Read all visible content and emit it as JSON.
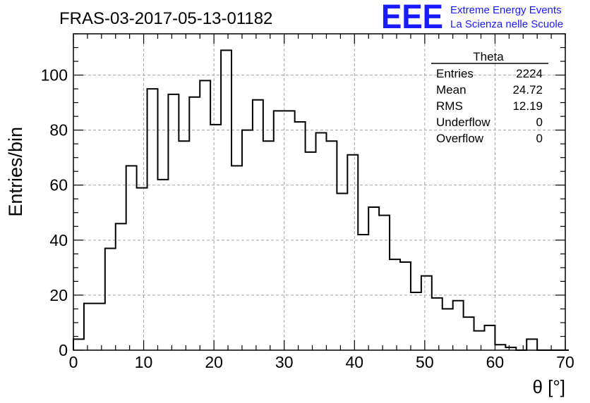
{
  "header": {
    "run_title": "FRAS-03-2017-05-13-01182",
    "logo_letters": "EEE",
    "logo_line1": "Extreme Energy Events",
    "logo_line2": "La Scienza nelle Scuole",
    "logo_color": "#1a1aff"
  },
  "stats_box": {
    "title": "Theta",
    "rows": [
      {
        "label": "Entries",
        "value": "2224"
      },
      {
        "label": "Mean",
        "value": "24.72"
      },
      {
        "label": "RMS",
        "value": "12.19"
      },
      {
        "label": "Underflow",
        "value": "0"
      },
      {
        "label": "Overflow",
        "value": "0"
      }
    ]
  },
  "chart_data": {
    "type": "histogram",
    "title": "FRAS-03-2017-05-13-01182",
    "xlabel": "θ [°]",
    "ylabel": "Entries/bin",
    "xlim": [
      0,
      70
    ],
    "ylim": [
      0,
      115
    ],
    "x_ticks": [
      0,
      10,
      20,
      30,
      40,
      50,
      60,
      70
    ],
    "y_ticks": [
      0,
      20,
      40,
      60,
      80,
      100
    ],
    "grid": true,
    "bin_width": 1.5,
    "bin_edges_start": 0,
    "values": [
      4,
      17,
      17,
      37,
      46,
      67,
      59,
      95,
      62,
      93,
      76,
      92,
      98,
      82,
      109,
      67,
      80,
      91,
      76,
      87,
      87,
      83,
      72,
      79,
      76,
      57,
      71,
      42,
      52,
      49,
      33,
      32,
      21,
      27,
      19,
      15,
      18,
      12,
      7,
      9,
      2,
      1,
      0,
      4,
      0,
      0,
      0
    ]
  }
}
